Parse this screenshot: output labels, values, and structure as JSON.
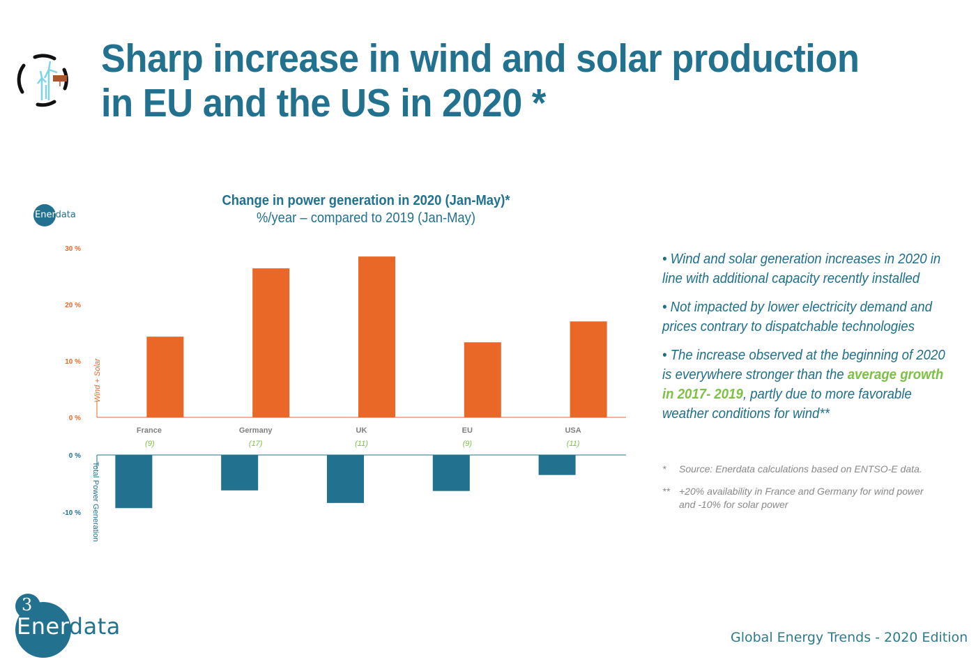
{
  "slide": {
    "title_line1": "Sharp increase in wind and solar production",
    "title_line2": "in EU and the US in 2020 *",
    "title_icon": "wind-solar-icon"
  },
  "logo_small": {
    "part1": "Ener",
    "part2": "data"
  },
  "colors": {
    "accent": "#21718f",
    "orange": "#e96828",
    "green": "#7cc242",
    "grey": "#7f7f7f"
  },
  "chart_data": {
    "type": "bar",
    "title": "Change in power generation in 2020 (Jan-May)*",
    "subtitle": "%/year – compared to 2019 (Jan-May)",
    "categories": [
      "France",
      "Germany",
      "UK",
      "EU",
      "USA"
    ],
    "category_notes": [
      "(9)",
      "(17)",
      "(11)",
      "(9)",
      "(11)"
    ],
    "series": [
      {
        "name": "Wind + Solar",
        "values": [
          14.3,
          26.4,
          28.5,
          13.3,
          17.0
        ],
        "color": "#e96828",
        "ylim": [
          0,
          30
        ],
        "ticks": [
          0,
          10,
          20,
          30
        ],
        "tick_labels": [
          "0 %",
          "10 %",
          "20 %",
          "30 %"
        ]
      },
      {
        "name": "Total Power Generation",
        "values": [
          -9.3,
          -6.2,
          -8.4,
          -6.3,
          -3.5
        ],
        "color": "#21718f",
        "ylim": [
          -16,
          0
        ],
        "ticks": [
          0,
          -10
        ],
        "tick_labels": [
          "0 %",
          "-10 %"
        ]
      }
    ],
    "xlabel": "",
    "grid": false,
    "legend": "none"
  },
  "bullets": [
    {
      "text": "• Wind and solar generation increases in 2020 in line with additional capacity recently installed"
    },
    {
      "text": "• Not impacted by lower electricity demand and prices contrary to dispatchable technologies"
    },
    {
      "pre": "• The increase observed at the beginning of 2020 is everywhere stronger than the ",
      "highlight": "average growth in 2017- 2019",
      "post": ", partly due to more favorable weather conditions for wind**"
    }
  ],
  "notes": [
    {
      "mark": "*",
      "text": "Source: Enerdata calculations based on ENTSO-E data."
    },
    {
      "mark": "**",
      "text": "+20% availability in France and Germany for wind power and -10% for solar power"
    }
  ],
  "footer": {
    "page_number": "3",
    "logo_part1": "Ener",
    "logo_part2": "data",
    "edition": "Global Energy Trends - 2020 Edition"
  }
}
